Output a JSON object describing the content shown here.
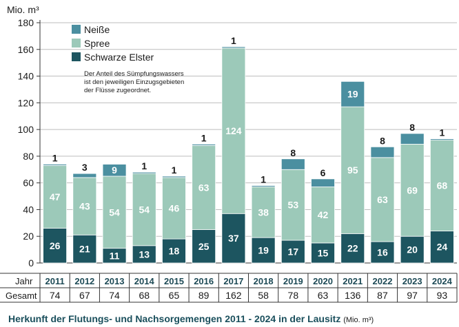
{
  "chart_data": {
    "type": "bar",
    "stacked": true,
    "y_unit_label": "Mio. m³",
    "ylim": [
      0,
      180
    ],
    "yticks": [
      0,
      20,
      40,
      60,
      80,
      100,
      120,
      140,
      160,
      180
    ],
    "categories": [
      "2011",
      "2012",
      "2013",
      "2014",
      "2015",
      "2016",
      "2017",
      "2018",
      "2019",
      "2020",
      "2021",
      "2022",
      "2023",
      "2024"
    ],
    "series": [
      {
        "name": "Schwarze Elster",
        "color": "#1d5560",
        "label_color": "#ffffff",
        "values": [
          26,
          21,
          11,
          13,
          18,
          25,
          37,
          19,
          17,
          15,
          22,
          16,
          20,
          24
        ]
      },
      {
        "name": "Spree",
        "color": "#9cc9b9",
        "label_color": "#ffffff",
        "values": [
          47,
          43,
          54,
          54,
          46,
          63,
          124,
          38,
          53,
          42,
          95,
          63,
          69,
          68
        ]
      },
      {
        "name": "Neiße",
        "color": "#4b8fa0",
        "label_color": "#ffffff",
        "values": [
          1,
          3,
          9,
          1,
          1,
          1,
          1,
          1,
          8,
          6,
          19,
          8,
          8,
          1
        ]
      }
    ],
    "totals": [
      74,
      67,
      74,
      68,
      65,
      89,
      162,
      58,
      78,
      63,
      136,
      87,
      97,
      93
    ],
    "legend": {
      "placement": "top-left",
      "order": [
        "Neiße",
        "Spree",
        "Schwarze Elster"
      ],
      "note_lines": [
        "Der Anteil des Sümpfungswassers",
        "ist den jeweiligen Einzugsgebieten",
        "der Flüsse zugeordnet."
      ]
    },
    "row_labels": {
      "year": "Jahr",
      "total": "Gesamt"
    },
    "title": "Herkunft der Flutungs- und Nachsorgemengen 2011 - 2024 in der Lausitz",
    "title_unit": "(Mio. m³)"
  }
}
